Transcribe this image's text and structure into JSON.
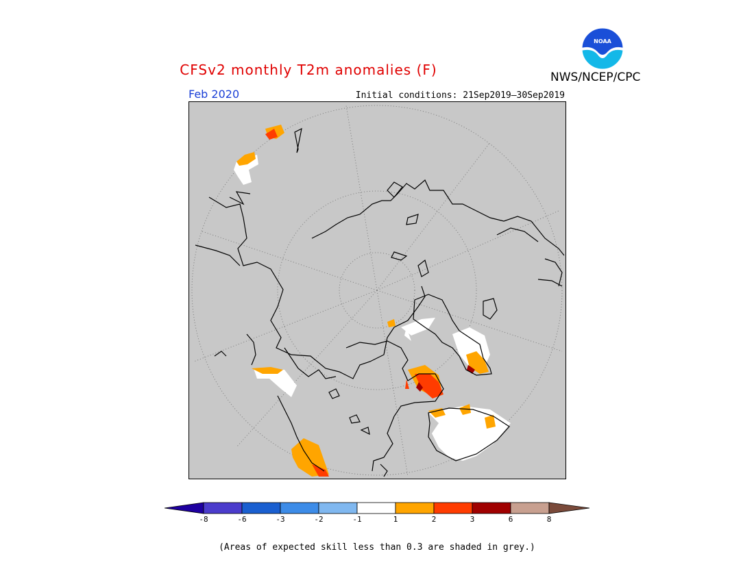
{
  "header": {
    "title": "CFSv2 monthly T2m anomalies (F)",
    "org": "NWS/NCEP/CPC",
    "logo_text": "NOAA",
    "month": "Feb 2020",
    "initial_conditions": "Initial conditions: 21Sep2019–30Sep2019"
  },
  "colorbar": {
    "labels": [
      "-8",
      "-6",
      "-3",
      "-2",
      "-1",
      "1",
      "2",
      "3",
      "6",
      "8"
    ],
    "colors": [
      "#1e00a0",
      "#4b3ccc",
      "#1a5fd0",
      "#3d8ce8",
      "#80b8f0",
      "#ffffff",
      "#ffa500",
      "#ff3c00",
      "#a00000",
      "#c8a090",
      "#7a4a3a"
    ]
  },
  "map": {
    "projection": "north-polar-stereographic",
    "background_color": "#c8c8c8"
  },
  "footnote": "(Areas of expected skill less than 0.3 are shaded in grey.)"
}
